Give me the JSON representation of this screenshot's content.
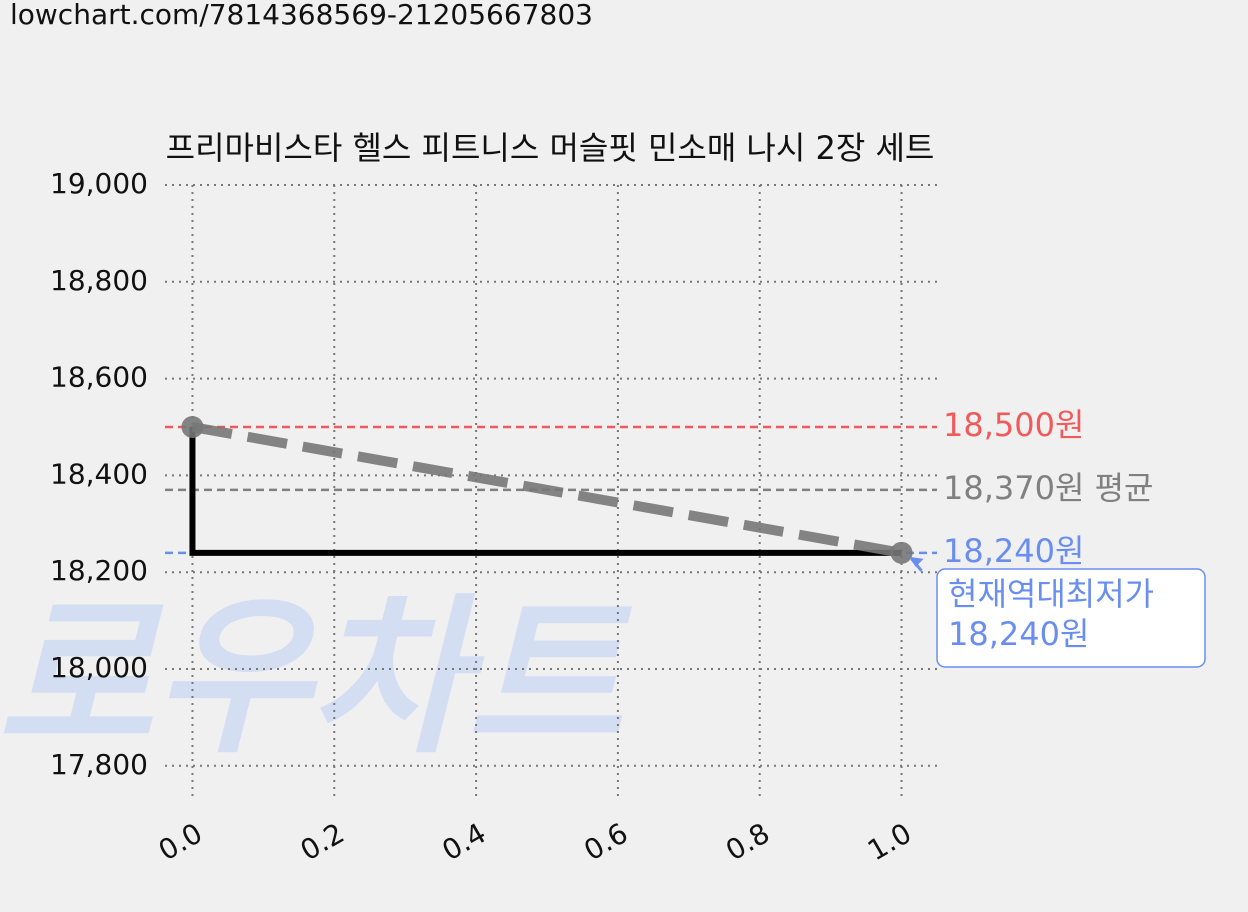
{
  "url": "lowchart.com/7814368569-21205667803",
  "chart_data": {
    "type": "line",
    "title": "프리마비스타 헬스 피트니스 머슬핏 민소매 나시 2장 세트",
    "watermark": "로우차트",
    "xlim": [
      -0.05,
      1.05
    ],
    "xticks": [
      {
        "value": 0,
        "label": "0.0"
      },
      0.2,
      0.4,
      0.6,
      0.8,
      {
        "value": 1,
        "label": "1.0"
      }
    ],
    "ylim": [
      17750,
      19000
    ],
    "yticks": [
      {
        "value": 17800,
        "label": "17,800"
      },
      {
        "value": 18000,
        "label": "18,000"
      },
      {
        "value": 18200,
        "label": "18,200"
      },
      {
        "value": 18400,
        "label": "18,400"
      },
      {
        "value": 18600,
        "label": "18,600"
      },
      {
        "value": 18800,
        "label": "18,800"
      },
      {
        "value": 19000,
        "label": "19,000"
      }
    ],
    "grid": true,
    "series": [
      {
        "color": "#000000",
        "linestyle": "solid",
        "x": [
          0,
          0,
          1
        ],
        "values": [
          18500,
          18240,
          18240
        ]
      },
      {
        "color": "#777777",
        "linestyle": "dashed",
        "marker": true,
        "x": [
          0,
          1
        ],
        "values": [
          18500,
          18240
        ]
      }
    ],
    "reference_lines": [
      {
        "value": 18500,
        "label": "18,500원",
        "color": "#f05a5a"
      },
      {
        "value": 18370,
        "label": "18,370원 평균",
        "color": "#808080"
      },
      {
        "value": 18240,
        "label": "18,240원",
        "color": "#6a8ef0"
      }
    ],
    "annotation": {
      "x": 1,
      "y": 18240,
      "lines": [
        "현재역대최저가",
        "18,240원"
      ],
      "color": "#6a8ef0"
    }
  }
}
